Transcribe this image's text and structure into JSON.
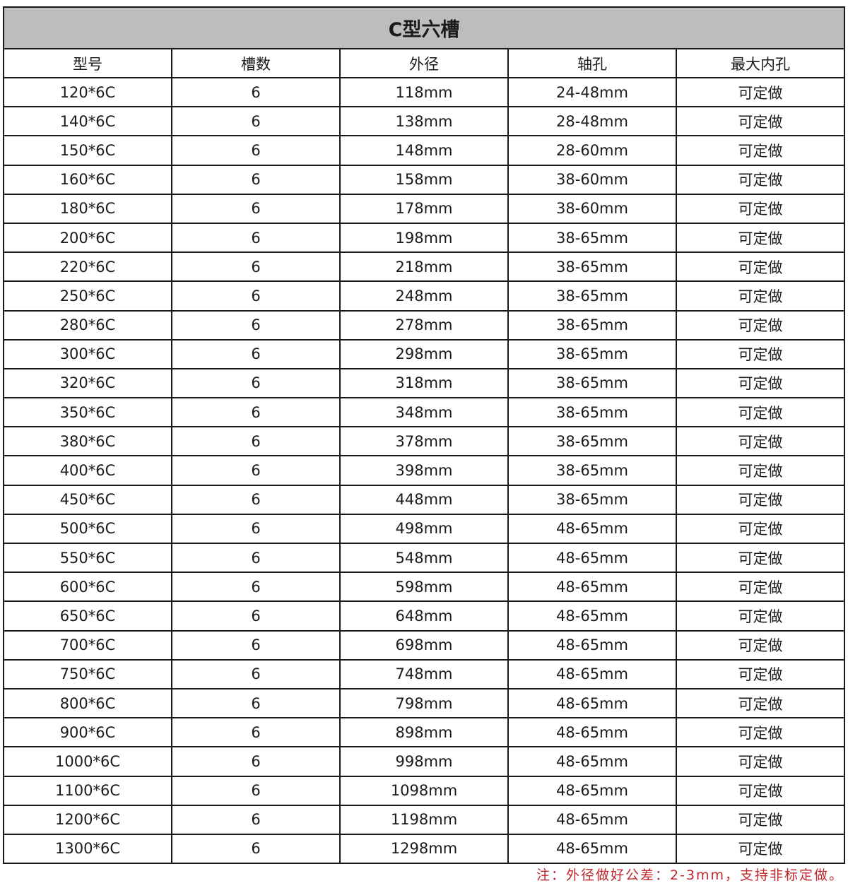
{
  "title": "C型六槽",
  "headers": [
    "型号",
    "槽数",
    "外径",
    "轴孔",
    "最大内孔"
  ],
  "rows": [
    [
      "120*6C",
      "6",
      "118mm",
      "24-48mm",
      "可定做"
    ],
    [
      "140*6C",
      "6",
      "138mm",
      "28-48mm",
      "可定做"
    ],
    [
      "150*6C",
      "6",
      "148mm",
      "28-60mm",
      "可定做"
    ],
    [
      "160*6C",
      "6",
      "158mm",
      "38-60mm",
      "可定做"
    ],
    [
      "180*6C",
      "6",
      "178mm",
      "38-60mm",
      "可定做"
    ],
    [
      "200*6C",
      "6",
      "198mm",
      "38-65mm",
      "可定做"
    ],
    [
      "220*6C",
      "6",
      "218mm",
      "38-65mm",
      "可定做"
    ],
    [
      "250*6C",
      "6",
      "248mm",
      "38-65mm",
      "可定做"
    ],
    [
      "280*6C",
      "6",
      "278mm",
      "38-65mm",
      "可定做"
    ],
    [
      "300*6C",
      "6",
      "298mm",
      "38-65mm",
      "可定做"
    ],
    [
      "320*6C",
      "6",
      "318mm",
      "38-65mm",
      "可定做"
    ],
    [
      "350*6C",
      "6",
      "348mm",
      "38-65mm",
      "可定做"
    ],
    [
      "380*6C",
      "6",
      "378mm",
      "38-65mm",
      "可定做"
    ],
    [
      "400*6C",
      "6",
      "398mm",
      "38-65mm",
      "可定做"
    ],
    [
      "450*6C",
      "6",
      "448mm",
      "38-65mm",
      "可定做"
    ],
    [
      "500*6C",
      "6",
      "498mm",
      "48-65mm",
      "可定做"
    ],
    [
      "550*6C",
      "6",
      "548mm",
      "48-65mm",
      "可定做"
    ],
    [
      "600*6C",
      "6",
      "598mm",
      "48-65mm",
      "可定做"
    ],
    [
      "650*6C",
      "6",
      "648mm",
      "48-65mm",
      "可定做"
    ],
    [
      "700*6C",
      "6",
      "698mm",
      "48-65mm",
      "可定做"
    ],
    [
      "750*6C",
      "6",
      "748mm",
      "48-65mm",
      "可定做"
    ],
    [
      "800*6C",
      "6",
      "798mm",
      "48-65mm",
      "可定做"
    ],
    [
      "900*6C",
      "6",
      "898mm",
      "48-65mm",
      "可定做"
    ],
    [
      "1000*6C",
      "6",
      "998mm",
      "48-65mm",
      "可定做"
    ],
    [
      "1100*6C",
      "6",
      "1098mm",
      "48-65mm",
      "可定做"
    ],
    [
      "1200*6C",
      "6",
      "1198mm",
      "48-65mm",
      "可定做"
    ],
    [
      "1300*6C",
      "6",
      "1298mm",
      "48-65mm",
      "可定做"
    ]
  ],
  "note": "注：外径做好公差：2-3mm，支持非标定做。",
  "colors": {
    "title_bg": "#bdbdbd",
    "note": "#c0282d"
  }
}
